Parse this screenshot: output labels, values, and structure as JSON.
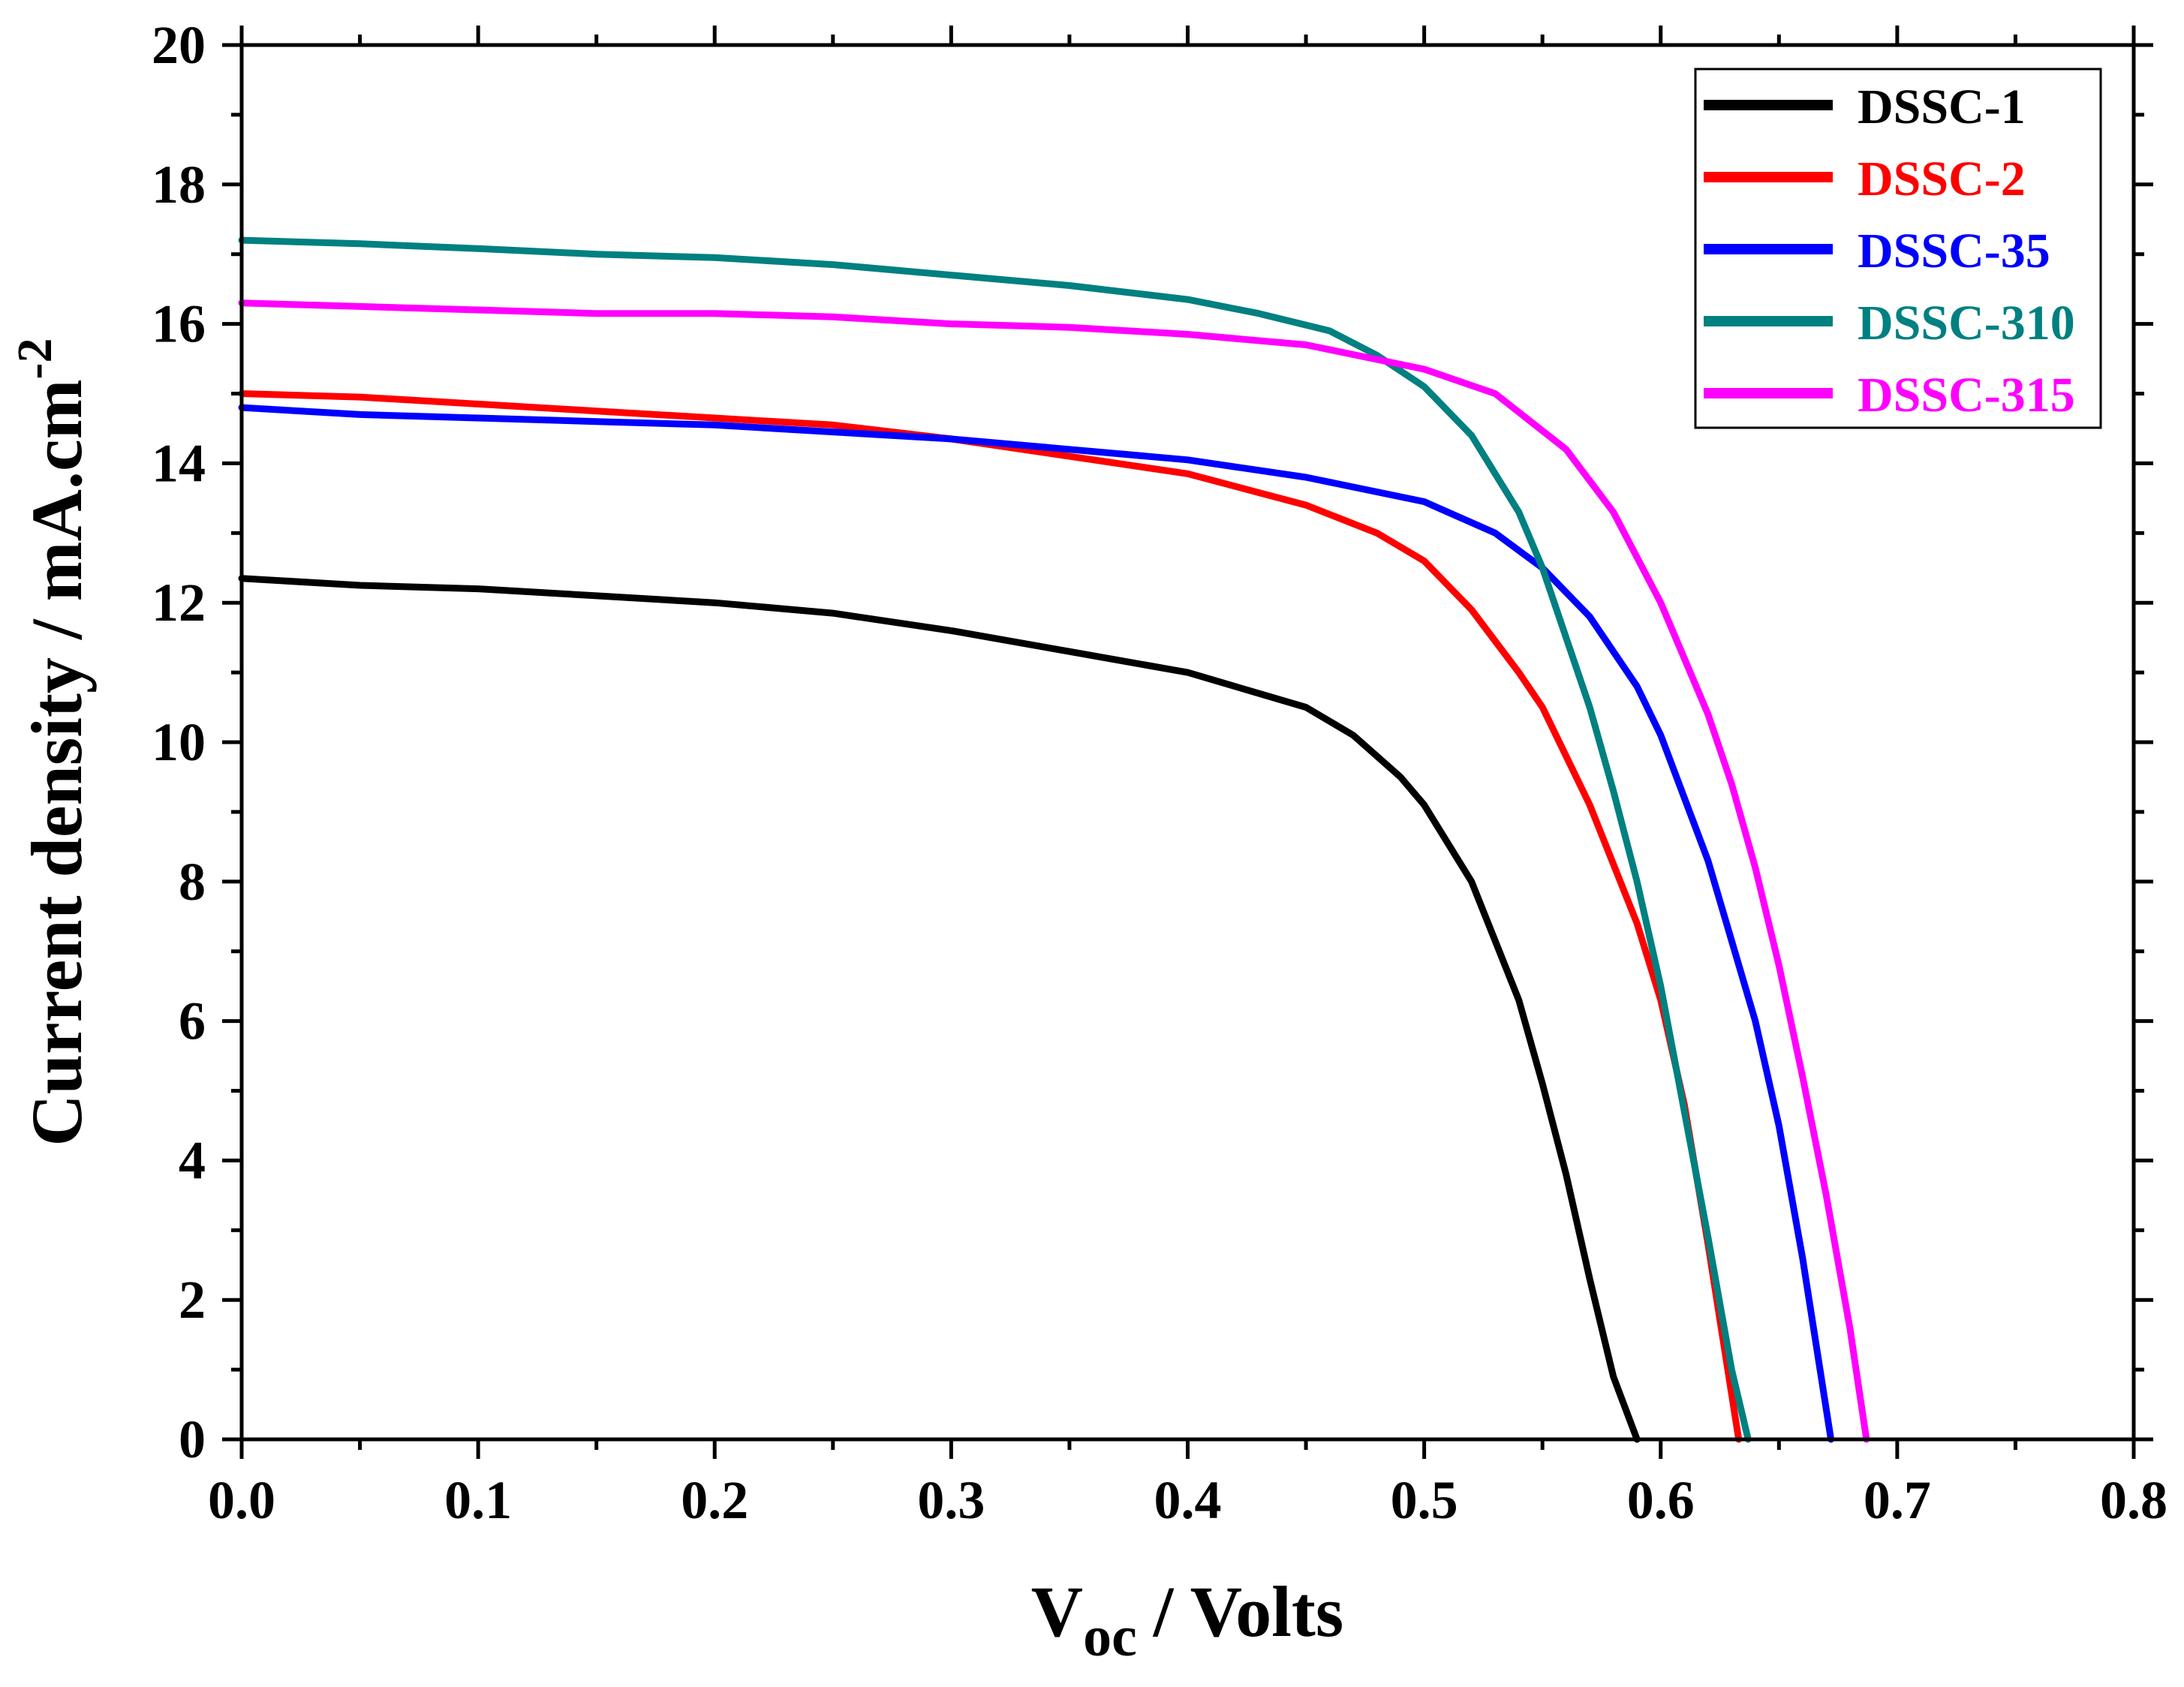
{
  "chart_data": {
    "type": "line",
    "title": "",
    "xlabel": {
      "main": "V",
      "sub": "oc",
      "rest": "/  Volts"
    },
    "ylabel": {
      "main": "Current density / mA.cm",
      "sup": "-2"
    },
    "xlim": [
      0.0,
      0.8
    ],
    "ylim": [
      0,
      20
    ],
    "xticks": [
      0.0,
      0.1,
      0.2,
      0.3,
      0.4,
      0.5,
      0.6,
      0.7,
      0.8
    ],
    "xtick_labels": [
      "0.0",
      "0.1",
      "0.2",
      "0.3",
      "0.4",
      "0.5",
      "0.6",
      "0.7",
      "0.8"
    ],
    "yticks": [
      0,
      2,
      4,
      6,
      8,
      10,
      12,
      14,
      16,
      18,
      20
    ],
    "ytick_labels": [
      "0",
      "2",
      "4",
      "6",
      "8",
      "10",
      "12",
      "14",
      "16",
      "18",
      "20"
    ],
    "grid": false,
    "legend_position": "top-right",
    "series": [
      {
        "name": "DSSC-1",
        "color": "#000000",
        "x": [
          0.0,
          0.05,
          0.1,
          0.15,
          0.2,
          0.25,
          0.3,
          0.35,
          0.4,
          0.45,
          0.47,
          0.49,
          0.5,
          0.52,
          0.54,
          0.55,
          0.56,
          0.57,
          0.58,
          0.59
        ],
        "y": [
          12.35,
          12.25,
          12.2,
          12.1,
          12.0,
          11.85,
          11.6,
          11.3,
          11.0,
          10.5,
          10.1,
          9.5,
          9.1,
          8.0,
          6.3,
          5.1,
          3.8,
          2.3,
          0.9,
          0.0
        ]
      },
      {
        "name": "DSSC-2",
        "color": "#ff0000",
        "x": [
          0.0,
          0.05,
          0.1,
          0.15,
          0.2,
          0.25,
          0.3,
          0.35,
          0.4,
          0.45,
          0.48,
          0.5,
          0.52,
          0.54,
          0.55,
          0.57,
          0.59,
          0.6,
          0.61,
          0.62,
          0.633
        ],
        "y": [
          15.0,
          14.95,
          14.85,
          14.75,
          14.65,
          14.55,
          14.35,
          14.1,
          13.85,
          13.4,
          13.0,
          12.6,
          11.9,
          11.0,
          10.5,
          9.1,
          7.4,
          6.3,
          4.8,
          2.8,
          0.0
        ]
      },
      {
        "name": "DSSC-35",
        "color": "#0000ff",
        "x": [
          0.0,
          0.05,
          0.1,
          0.15,
          0.2,
          0.25,
          0.3,
          0.35,
          0.4,
          0.45,
          0.5,
          0.53,
          0.55,
          0.57,
          0.59,
          0.6,
          0.62,
          0.64,
          0.65,
          0.66,
          0.672
        ],
        "y": [
          14.8,
          14.7,
          14.65,
          14.6,
          14.55,
          14.45,
          14.35,
          14.2,
          14.05,
          13.8,
          13.45,
          13.0,
          12.5,
          11.8,
          10.8,
          10.1,
          8.3,
          6.0,
          4.5,
          2.6,
          0.0
        ]
      },
      {
        "name": "DSSC-310",
        "color": "#008080",
        "x": [
          0.0,
          0.05,
          0.1,
          0.15,
          0.2,
          0.25,
          0.3,
          0.35,
          0.4,
          0.43,
          0.46,
          0.48,
          0.5,
          0.52,
          0.54,
          0.55,
          0.56,
          0.57,
          0.58,
          0.59,
          0.6,
          0.61,
          0.62,
          0.63,
          0.637
        ],
        "y": [
          17.2,
          17.15,
          17.08,
          17.0,
          16.95,
          16.85,
          16.7,
          16.55,
          16.35,
          16.15,
          15.9,
          15.55,
          15.1,
          14.4,
          13.3,
          12.5,
          11.5,
          10.5,
          9.3,
          8.0,
          6.5,
          4.7,
          2.9,
          1.0,
          0.0
        ]
      },
      {
        "name": "DSSC-315",
        "color": "#ff00ff",
        "x": [
          0.0,
          0.05,
          0.1,
          0.15,
          0.2,
          0.25,
          0.3,
          0.35,
          0.4,
          0.45,
          0.5,
          0.53,
          0.56,
          0.58,
          0.6,
          0.62,
          0.63,
          0.64,
          0.65,
          0.66,
          0.67,
          0.68,
          0.687
        ],
        "y": [
          16.3,
          16.25,
          16.2,
          16.15,
          16.15,
          16.1,
          16.0,
          15.95,
          15.85,
          15.7,
          15.35,
          15.0,
          14.2,
          13.3,
          12.0,
          10.4,
          9.4,
          8.2,
          6.8,
          5.2,
          3.5,
          1.6,
          0.0
        ]
      }
    ]
  }
}
